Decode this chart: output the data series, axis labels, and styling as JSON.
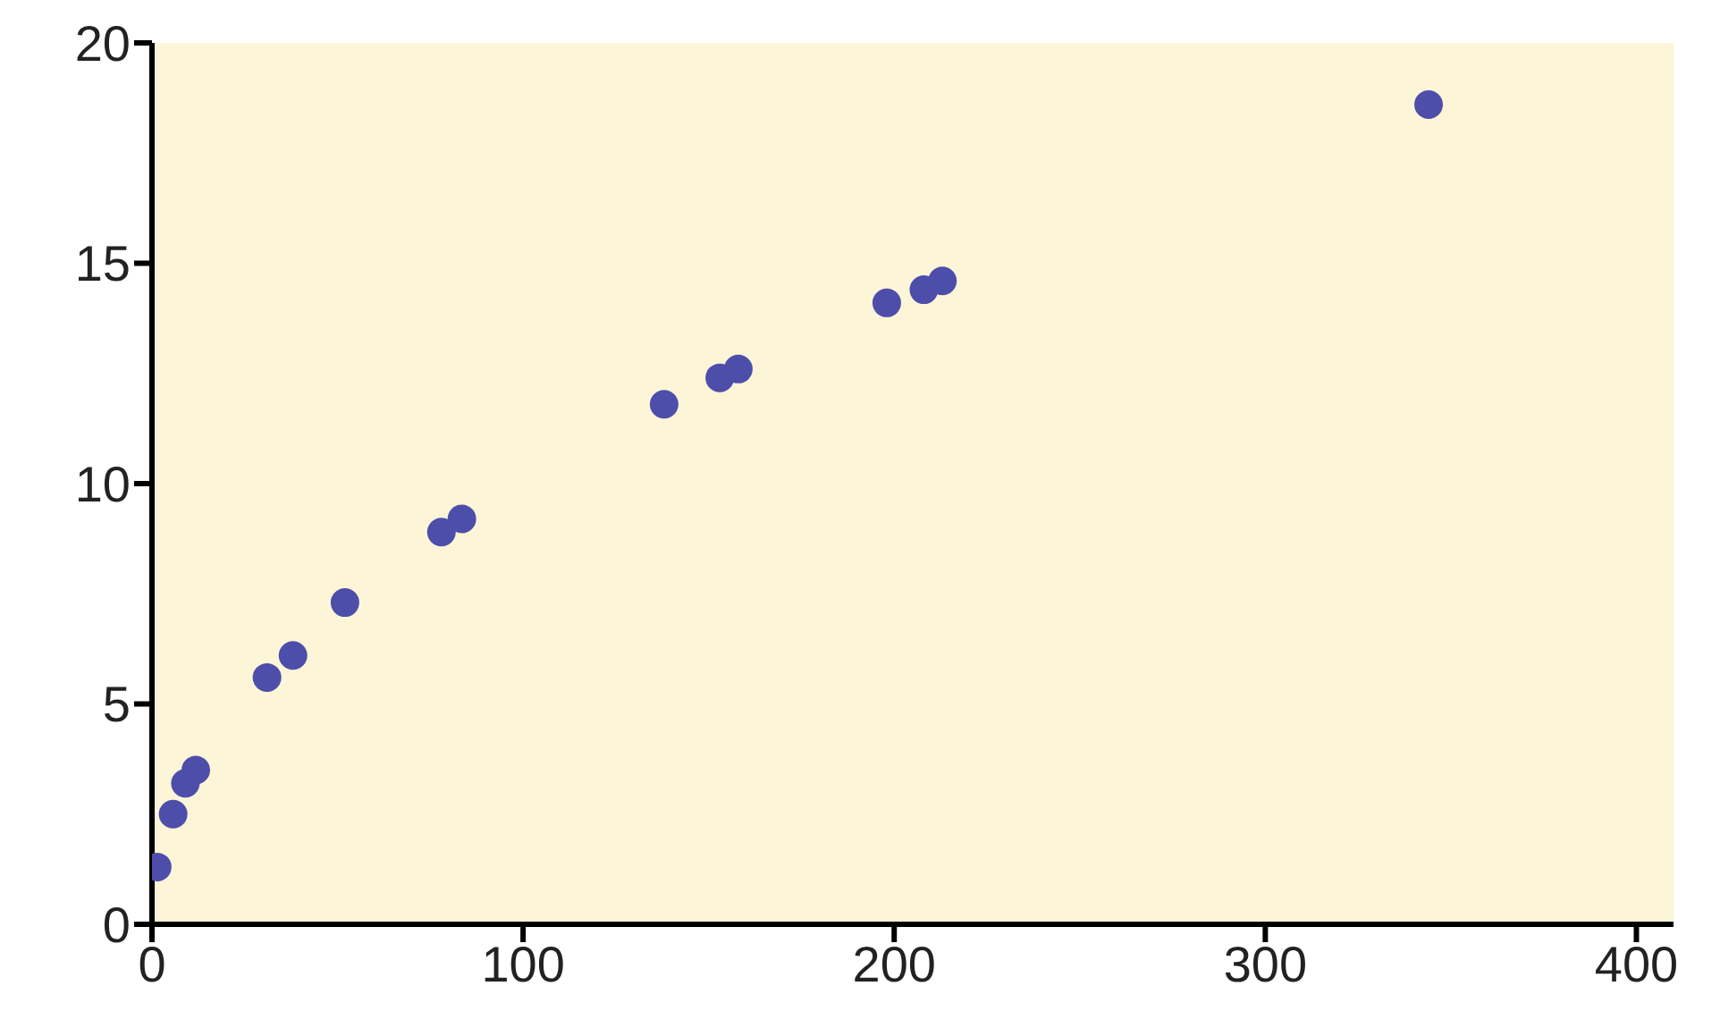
{
  "chart_data": {
    "type": "scatter",
    "x": [
      1.4,
      5.7,
      9,
      11.8,
      31,
      38,
      52,
      78,
      83.5,
      138,
      153,
      158,
      198,
      208,
      213,
      344
    ],
    "values": [
      1.3,
      2.5,
      3.2,
      3.5,
      5.6,
      6.1,
      7.3,
      8.9,
      9.2,
      11.8,
      12.4,
      12.6,
      14.1,
      14.4,
      14.6,
      18.6
    ],
    "color": "#4d4eaa",
    "marker": "circle",
    "xlim": [
      0,
      410
    ],
    "xticks": [
      0,
      100,
      200,
      300,
      400
    ],
    "ylim": [
      0,
      20
    ],
    "yticks": [
      0,
      5,
      10,
      15,
      20
    ],
    "grid": false
  }
}
